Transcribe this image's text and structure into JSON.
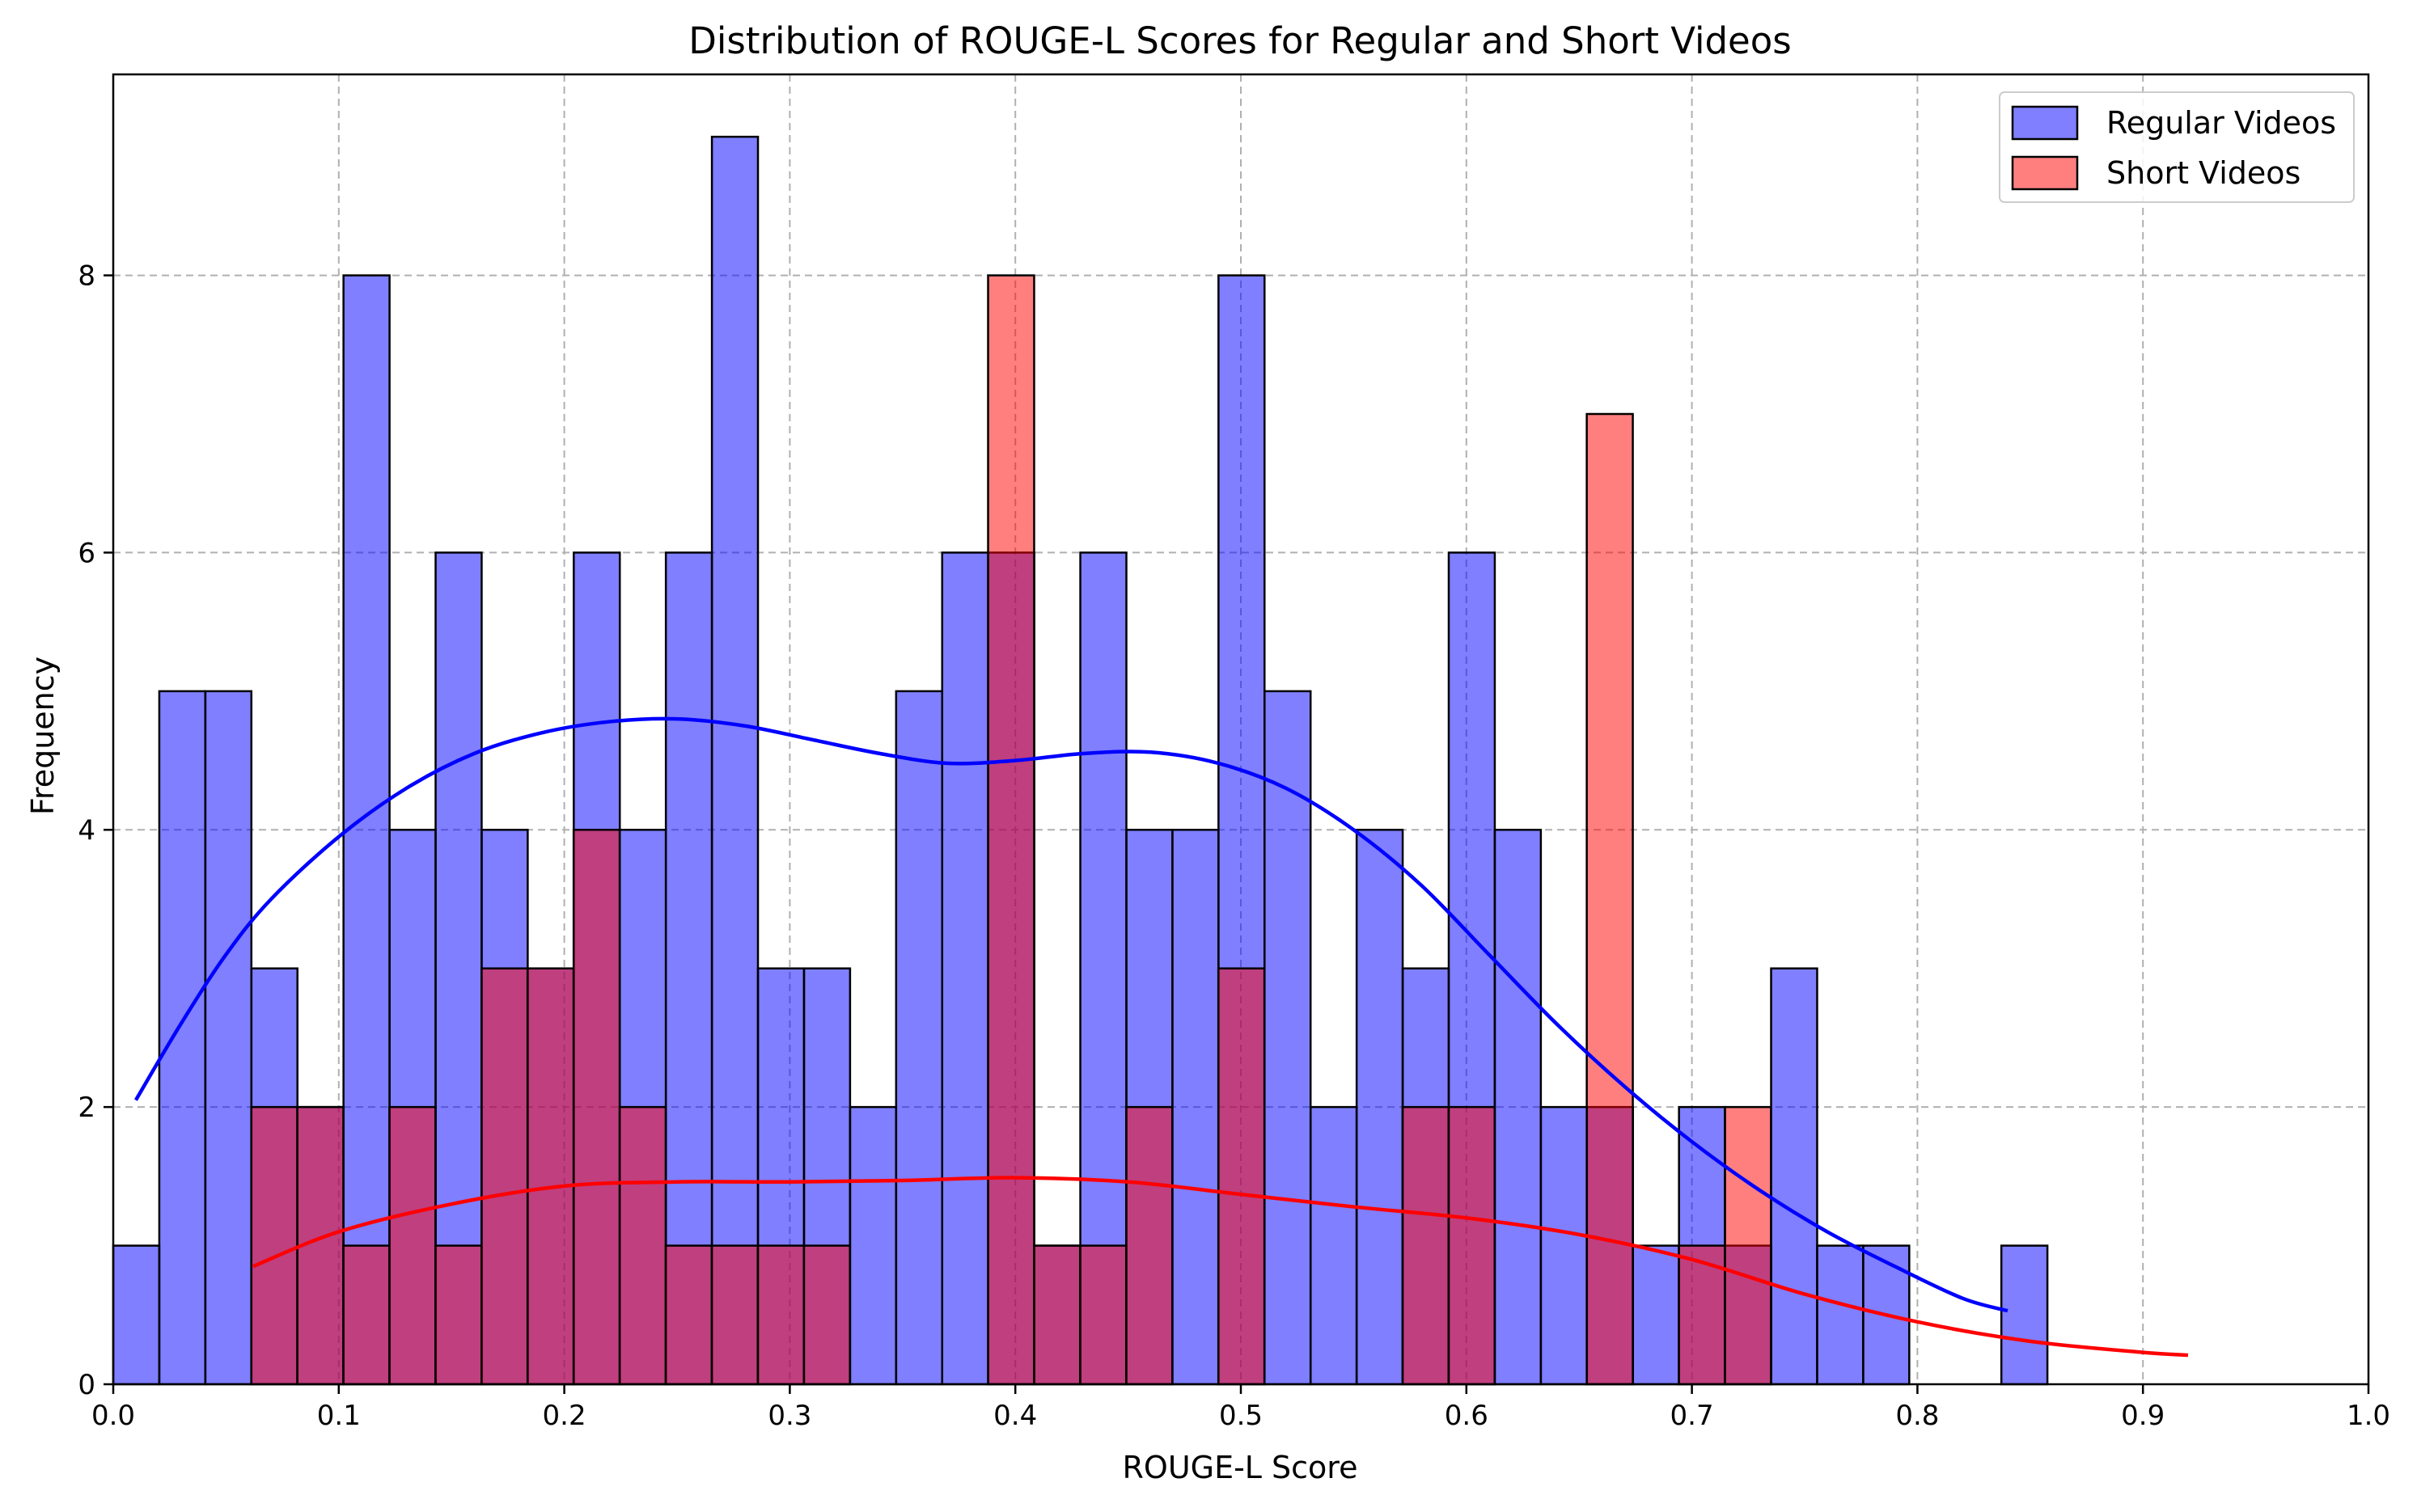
{
  "chart_data": {
    "type": "bar",
    "title": "Distribution of ROUGE-L Scores for Regular and Short Videos",
    "xlabel": "ROUGE-L Score",
    "ylabel": "Frequency",
    "xlim": [
      0.0,
      1.0
    ],
    "ylim": [
      0,
      9.45
    ],
    "xticks": [
      "0.0",
      "0.1",
      "0.2",
      "0.3",
      "0.4",
      "0.5",
      "0.6",
      "0.7",
      "0.8",
      "0.9",
      "1.0"
    ],
    "yticks": [
      "0",
      "2",
      "4",
      "6",
      "8"
    ],
    "grid": true,
    "legend_position": "top-right",
    "bin_width": 0.02042,
    "series": [
      {
        "name": "Regular Videos",
        "color": "#0000ff",
        "bin_start": 0.0,
        "counts": [
          1,
          5,
          5,
          3,
          2,
          8,
          4,
          6,
          4,
          3,
          6,
          4,
          6,
          9,
          3,
          3,
          2,
          5,
          6,
          6,
          1,
          6,
          4,
          4,
          8,
          5,
          2,
          4,
          3,
          6,
          4,
          2,
          2,
          1,
          2,
          1,
          3,
          1,
          1,
          0,
          0,
          1
        ],
        "kde": [
          [
            0.01,
            2.05
          ],
          [
            0.03,
            2.6
          ],
          [
            0.05,
            3.1
          ],
          [
            0.07,
            3.5
          ],
          [
            0.1,
            3.95
          ],
          [
            0.13,
            4.3
          ],
          [
            0.16,
            4.55
          ],
          [
            0.19,
            4.7
          ],
          [
            0.22,
            4.78
          ],
          [
            0.25,
            4.8
          ],
          [
            0.28,
            4.75
          ],
          [
            0.31,
            4.65
          ],
          [
            0.34,
            4.55
          ],
          [
            0.37,
            4.48
          ],
          [
            0.4,
            4.5
          ],
          [
            0.43,
            4.55
          ],
          [
            0.46,
            4.56
          ],
          [
            0.49,
            4.48
          ],
          [
            0.52,
            4.3
          ],
          [
            0.55,
            4.0
          ],
          [
            0.58,
            3.6
          ],
          [
            0.61,
            3.1
          ],
          [
            0.64,
            2.6
          ],
          [
            0.67,
            2.15
          ],
          [
            0.7,
            1.75
          ],
          [
            0.73,
            1.4
          ],
          [
            0.76,
            1.1
          ],
          [
            0.79,
            0.85
          ],
          [
            0.82,
            0.62
          ],
          [
            0.84,
            0.53
          ]
        ]
      },
      {
        "name": "Short Videos",
        "color": "#ff0000",
        "bin_start": 0.0612,
        "counts": [
          2,
          2,
          1,
          2,
          1,
          3,
          3,
          4,
          2,
          1,
          1,
          1,
          1,
          0,
          0,
          0,
          8,
          1,
          1,
          2,
          0,
          3,
          0,
          0,
          0,
          2,
          2,
          0,
          0,
          7,
          0,
          1,
          2
        ],
        "kde": [
          [
            0.062,
            0.85
          ],
          [
            0.1,
            1.1
          ],
          [
            0.15,
            1.3
          ],
          [
            0.2,
            1.43
          ],
          [
            0.25,
            1.46
          ],
          [
            0.3,
            1.46
          ],
          [
            0.35,
            1.47
          ],
          [
            0.4,
            1.49
          ],
          [
            0.45,
            1.46
          ],
          [
            0.5,
            1.37
          ],
          [
            0.55,
            1.28
          ],
          [
            0.6,
            1.2
          ],
          [
            0.65,
            1.08
          ],
          [
            0.7,
            0.9
          ],
          [
            0.75,
            0.65
          ],
          [
            0.8,
            0.45
          ],
          [
            0.85,
            0.31
          ],
          [
            0.9,
            0.23
          ],
          [
            0.92,
            0.21
          ]
        ]
      }
    ]
  }
}
